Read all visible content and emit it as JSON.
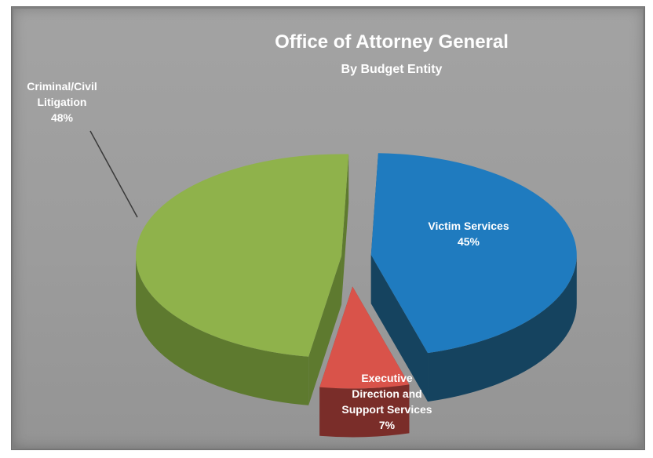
{
  "chart_data": {
    "type": "pie",
    "title": "Office of Attorney General",
    "subtitle": "By Budget Entity",
    "slices": [
      {
        "label_lines": [
          "Victim Services"
        ],
        "percent_label": "45%",
        "value": 45,
        "color": "#1f7bbf",
        "side": "#15435f",
        "explode": 28
      },
      {
        "label_lines": [
          "Executive",
          "Direction and",
          "Support Services"
        ],
        "percent_label": "7%",
        "value": 7,
        "color": "#d9534a",
        "side": "#7a2d29",
        "explode": 70
      },
      {
        "label_lines": [
          "Criminal/Civil",
          "Litigation"
        ],
        "percent_label": "48%",
        "value": 48,
        "color": "#8fb24b",
        "side": "#5e7a2f",
        "explode": 10
      }
    ],
    "start_angle_deg": -88,
    "legend": "none",
    "style": "3d-exploded-pie"
  }
}
